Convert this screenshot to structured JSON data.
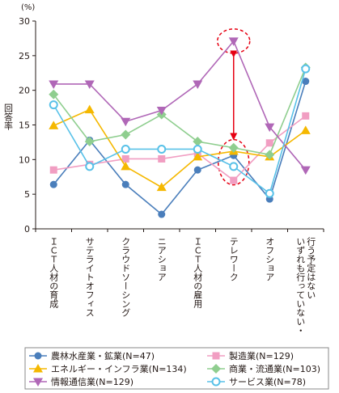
{
  "chart_data": {
    "type": "line",
    "unit_label": "(%)",
    "ylabel": "回答率",
    "xlabel": "",
    "title": "",
    "ylim": [
      0,
      30
    ],
    "yticks": [
      0,
      5,
      10,
      15,
      20,
      25,
      30
    ],
    "grid": false,
    "legend_position": "bottom",
    "categories": [
      "ＩＣＴ人材の育成",
      "サテライトオフィス",
      "クラウドソーシング",
      "ニアショア",
      "ＩＣＴ人材の雇用",
      "テレワーク",
      "オフショア",
      "いずれも行っていない・行う予定はない"
    ],
    "category_lines": [
      [
        "ＩＣＴ人材の育成"
      ],
      [
        "サテライトオフィス"
      ],
      [
        "クラウドソーシング"
      ],
      [
        "ニアショア"
      ],
      [
        "ＩＣＴ人材の雇用"
      ],
      [
        "テレワーク"
      ],
      [
        "オフショア"
      ],
      [
        "いずれも行っていない・",
        "行う予定はない"
      ]
    ],
    "series": [
      {
        "name": "農林水産業・鉱業(N=47)",
        "color": "#4a7ebb",
        "marker": "circle",
        "values": [
          6.4,
          12.8,
          6.4,
          2.1,
          8.5,
          10.6,
          4.3,
          21.3
        ]
      },
      {
        "name": "製造業(N=129)",
        "color": "#f19ec2",
        "marker": "square",
        "values": [
          8.5,
          9.3,
          10.1,
          10.1,
          10.9,
          7.0,
          12.4,
          16.3
        ]
      },
      {
        "name": "エネルギー・インフラ業(N=134)",
        "color": "#f5b800",
        "marker": "triangle-up",
        "values": [
          14.9,
          17.2,
          9.0,
          6.0,
          10.4,
          11.2,
          10.4,
          14.2
        ]
      },
      {
        "name": "商業・流通業(N=103)",
        "color": "#8fce8f",
        "marker": "diamond",
        "values": [
          19.4,
          12.6,
          13.6,
          16.5,
          12.6,
          11.7,
          10.7,
          23.3
        ]
      },
      {
        "name": "情報通信業(N=129)",
        "color": "#b067b7",
        "marker": "triangle-down",
        "values": [
          20.9,
          20.9,
          15.5,
          17.1,
          20.9,
          27.1,
          14.7,
          8.5
        ]
      },
      {
        "name": "サービス業(N=78)",
        "color": "#58c1e8",
        "marker": "circle-open",
        "values": [
          17.9,
          9.0,
          11.5,
          11.5,
          11.5,
          9.0,
          5.1,
          23.1
        ]
      }
    ],
    "annotation": {
      "type": "double-arrow",
      "category": "テレワーク",
      "from": 27.1,
      "to": 11.2,
      "color": "#e60012"
    }
  }
}
